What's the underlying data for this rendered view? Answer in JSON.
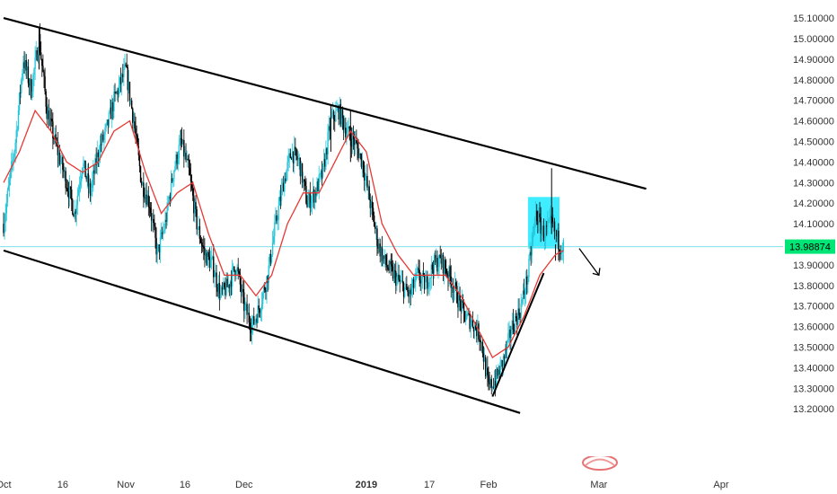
{
  "chart_data": {
    "type": "candlestick",
    "instrument_price_label": "13.98874",
    "last_price": 13.98874,
    "y_axis": {
      "min": 13.14,
      "max": 15.14,
      "ticks": [
        "15.10000",
        "14.90000",
        "14.80000",
        "14.70000",
        "14.60000",
        "14.50000",
        "14.40000",
        "14.30000",
        "14.20000",
        "14.10000",
        "13.90000",
        "13.80000",
        "13.70000",
        "13.60000",
        "13.50000",
        "13.40000",
        "13.30000",
        "13.20000"
      ],
      "top_tick": "15.10000",
      "second_tick": "15.00000"
    },
    "x_axis": {
      "labels": [
        {
          "text": "Oct",
          "day": 0
        },
        {
          "text": "16",
          "day": 15
        },
        {
          "text": "Nov",
          "day": 31
        },
        {
          "text": "16",
          "day": 46
        },
        {
          "text": "Dec",
          "day": 61
        },
        {
          "text": "2019",
          "day": 92
        },
        {
          "text": "17",
          "day": 108
        },
        {
          "text": "Feb",
          "day": 123
        },
        {
          "text": "Mar",
          "day": 151
        },
        {
          "text": "Apr",
          "day": 182
        }
      ]
    },
    "colors": {
      "up": "#26c6da",
      "down": "#000000",
      "moving_average": "#e53935",
      "trendlines": "#000000",
      "highlight_box": "#00e5ff",
      "price_line": "#80deea",
      "price_label_bg": "#00e676"
    },
    "trendlines": [
      {
        "name": "upper-channel",
        "from": {
          "day": 0,
          "price": 15.1
        },
        "to": {
          "day": 163,
          "price": 14.27
        }
      },
      {
        "name": "lower-channel",
        "from": {
          "day": 0,
          "price": 13.97
        },
        "to": {
          "day": 131,
          "price": 13.18
        }
      },
      {
        "name": "rising-support",
        "from": {
          "day": 124,
          "price": 13.26
        },
        "to": {
          "day": 137,
          "price": 13.86
        }
      },
      {
        "name": "arrow-down",
        "from": {
          "day": 146,
          "price": 13.98
        },
        "to": {
          "day": 151,
          "price": 13.85
        }
      }
    ],
    "highlight_box": {
      "day_start": 133,
      "day_end": 141,
      "price_top": 14.23,
      "price_bottom": 13.98
    },
    "anchors": [
      [
        0,
        14.1
      ],
      [
        3,
        14.5
      ],
      [
        5,
        14.9
      ],
      [
        7,
        14.75
      ],
      [
        9,
        15.0
      ],
      [
        11,
        14.65
      ],
      [
        13,
        14.5
      ],
      [
        16,
        14.3
      ],
      [
        18,
        14.15
      ],
      [
        20,
        14.4
      ],
      [
        22,
        14.25
      ],
      [
        24,
        14.45
      ],
      [
        26,
        14.55
      ],
      [
        28,
        14.7
      ],
      [
        31,
        14.85
      ],
      [
        33,
        14.6
      ],
      [
        35,
        14.3
      ],
      [
        37,
        14.2
      ],
      [
        39,
        13.95
      ],
      [
        41,
        14.1
      ],
      [
        43,
        14.35
      ],
      [
        45,
        14.5
      ],
      [
        47,
        14.35
      ],
      [
        49,
        14.1
      ],
      [
        51,
        13.95
      ],
      [
        53,
        13.9
      ],
      [
        55,
        13.75
      ],
      [
        57,
        13.8
      ],
      [
        59,
        13.9
      ],
      [
        61,
        13.7
      ],
      [
        63,
        13.6
      ],
      [
        65,
        13.7
      ],
      [
        67,
        13.85
      ],
      [
        69,
        14.1
      ],
      [
        71,
        14.3
      ],
      [
        73,
        14.45
      ],
      [
        75,
        14.4
      ],
      [
        77,
        14.2
      ],
      [
        79,
        14.25
      ],
      [
        81,
        14.35
      ],
      [
        83,
        14.6
      ],
      [
        85,
        14.65
      ],
      [
        87,
        14.55
      ],
      [
        89,
        14.5
      ],
      [
        91,
        14.4
      ],
      [
        93,
        14.2
      ],
      [
        95,
        14.0
      ],
      [
        97,
        13.9
      ],
      [
        99,
        13.85
      ],
      [
        101,
        13.8
      ],
      [
        103,
        13.75
      ],
      [
        105,
        13.85
      ],
      [
        107,
        13.8
      ],
      [
        109,
        13.9
      ],
      [
        111,
        13.92
      ],
      [
        113,
        13.85
      ],
      [
        115,
        13.75
      ],
      [
        117,
        13.65
      ],
      [
        119,
        13.62
      ],
      [
        121,
        13.55
      ],
      [
        123,
        13.3
      ],
      [
        125,
        13.35
      ],
      [
        127,
        13.45
      ],
      [
        129,
        13.6
      ],
      [
        131,
        13.68
      ],
      [
        133,
        13.85
      ],
      [
        135,
        14.15
      ],
      [
        137,
        14.05
      ],
      [
        139,
        14.1
      ],
      [
        141,
        14.0
      ],
      [
        142,
        13.99
      ]
    ],
    "moving_average_anchors": [
      [
        0,
        14.3
      ],
      [
        4,
        14.45
      ],
      [
        8,
        14.65
      ],
      [
        12,
        14.55
      ],
      [
        16,
        14.4
      ],
      [
        20,
        14.35
      ],
      [
        24,
        14.4
      ],
      [
        28,
        14.55
      ],
      [
        32,
        14.6
      ],
      [
        36,
        14.35
      ],
      [
        40,
        14.15
      ],
      [
        44,
        14.25
      ],
      [
        48,
        14.3
      ],
      [
        52,
        14.05
      ],
      [
        56,
        13.85
      ],
      [
        60,
        13.85
      ],
      [
        64,
        13.75
      ],
      [
        68,
        13.85
      ],
      [
        72,
        14.1
      ],
      [
        76,
        14.25
      ],
      [
        80,
        14.25
      ],
      [
        84,
        14.4
      ],
      [
        88,
        14.55
      ],
      [
        92,
        14.45
      ],
      [
        96,
        14.1
      ],
      [
        100,
        13.95
      ],
      [
        104,
        13.85
      ],
      [
        108,
        13.85
      ],
      [
        112,
        13.85
      ],
      [
        116,
        13.75
      ],
      [
        120,
        13.6
      ],
      [
        124,
        13.45
      ],
      [
        128,
        13.5
      ],
      [
        132,
        13.65
      ],
      [
        136,
        13.85
      ],
      [
        140,
        13.95
      ],
      [
        142,
        13.97
      ]
    ]
  }
}
